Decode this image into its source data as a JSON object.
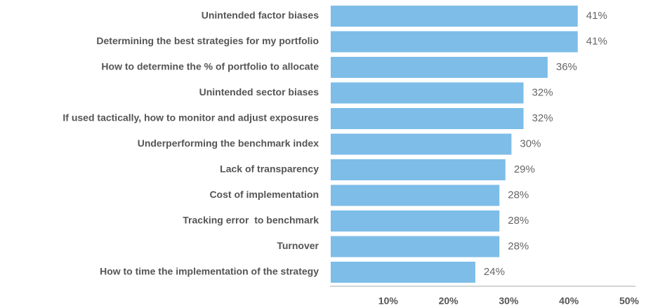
{
  "chart_data": {
    "type": "hbar",
    "categories": [
      "Unintended factor biases",
      "Determining the best strategies for my portfolio",
      "How to determine the % of portfolio to allocate",
      "Unintended sector biases",
      "If used tactically, how to monitor and adjust exposures",
      "Underperforming the benchmark index",
      "Lack of transparency",
      "Cost of implementation",
      "Tracking error  to benchmark",
      "Turnover",
      "How to time the implementation of the strategy"
    ],
    "values": [
      41,
      41,
      36,
      32,
      32,
      30,
      29,
      28,
      28,
      28,
      24
    ],
    "value_labels": [
      "41%",
      "41%",
      "36%",
      "32%",
      "32%",
      "30%",
      "29%",
      "28%",
      "28%",
      "28%",
      "24%"
    ],
    "color": "#7dbde8",
    "xlim": [
      0,
      50
    ],
    "xticks": [
      {
        "value": 10,
        "label": "10%"
      },
      {
        "value": 20,
        "label": "20%"
      },
      {
        "value": 30,
        "label": "30%"
      },
      {
        "value": 40,
        "label": "40%"
      },
      {
        "value": 50,
        "label": "50%"
      }
    ]
  }
}
